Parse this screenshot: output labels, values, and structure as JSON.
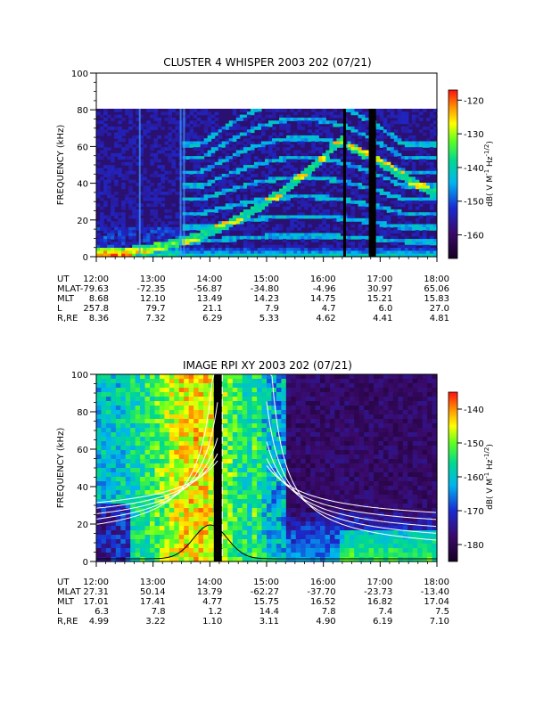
{
  "chart_data": [
    {
      "type": "heatmap",
      "title": "CLUSTER 4 WHISPER 2003 202 (07/21)",
      "ylabel": "FREQUENCY (kHz)",
      "ylim": [
        0,
        100
      ],
      "y_ticks": [
        "0",
        "20",
        "40",
        "60",
        "80",
        "100"
      ],
      "x_ticks": [
        "12:00",
        "13:00",
        "14:00",
        "15:00",
        "16:00",
        "17:00",
        "18:00"
      ],
      "colorbar": {
        "label": "dB( V M",
        "ticks": [
          "-120",
          "-130",
          "-140",
          "-150",
          "-160"
        ],
        "range": [
          -167,
          -117
        ]
      },
      "ephemeris": [
        {
          "name": "UT",
          "values": [
            "12:00",
            "13:00",
            "14:00",
            "15:00",
            "16:00",
            "17:00",
            "18:00"
          ]
        },
        {
          "name": "MLAT",
          "values": [
            "-79.63",
            "-72.35",
            "-56.87",
            "-34.80",
            "-4.96",
            "30.97",
            "65.06"
          ]
        },
        {
          "name": "MLT",
          "values": [
            "8.68",
            "12.10",
            "13.49",
            "14.23",
            "14.75",
            "15.21",
            "15.83"
          ]
        },
        {
          "name": "L",
          "values": [
            "257.8",
            "79.7",
            "21.1",
            "7.9",
            "4.7",
            "6.0",
            "27.0"
          ]
        },
        {
          "name": "R,RE",
          "values": [
            "8.36",
            "7.32",
            "6.29",
            "5.33",
            "4.62",
            "4.41",
            "4.81"
          ]
        }
      ]
    },
    {
      "type": "heatmap",
      "title": "IMAGE RPI XY 2003 202 (07/21)",
      "ylabel": "FREQUENCY (kHz)",
      "ylim": [
        0,
        100
      ],
      "y_ticks": [
        "0",
        "20",
        "40",
        "60",
        "80",
        "100"
      ],
      "x_ticks": [
        "12:00",
        "13:00",
        "14:00",
        "15:00",
        "16:00",
        "17:00",
        "18:00"
      ],
      "colorbar": {
        "label": "dB( V M",
        "ticks": [
          "-140",
          "-150",
          "-160",
          "-170",
          "-180"
        ],
        "range": [
          -185,
          -135
        ]
      },
      "ephemeris": [
        {
          "name": "UT",
          "values": [
            "12:00",
            "13:00",
            "14:00",
            "15:00",
            "16:00",
            "17:00",
            "18:00"
          ]
        },
        {
          "name": "MLAT",
          "values": [
            "27.31",
            "50.14",
            "13.79",
            "-62.27",
            "-37.70",
            "-23.73",
            "-13.40"
          ]
        },
        {
          "name": "MLT",
          "values": [
            "17.01",
            "17.41",
            "4.77",
            "15.75",
            "16.52",
            "16.82",
            "17.04"
          ]
        },
        {
          "name": "L",
          "values": [
            "6.3",
            "7.8",
            "1.2",
            "14.4",
            "7.8",
            "7.4",
            "7.5"
          ]
        },
        {
          "name": "R,RE",
          "values": [
            "4.99",
            "3.22",
            "1.10",
            "3.11",
            "4.90",
            "6.19",
            "7.10"
          ]
        }
      ]
    }
  ]
}
